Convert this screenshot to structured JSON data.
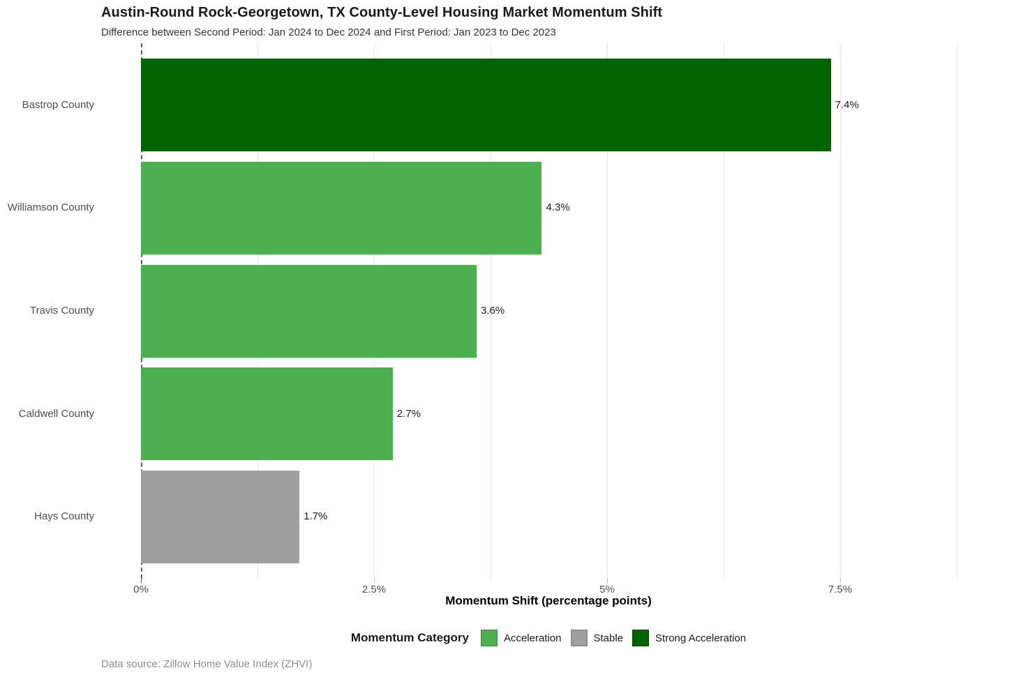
{
  "header": {
    "title": "Austin-Round Rock-Georgetown, TX County-Level Housing Market Momentum Shift",
    "subtitle": "Difference between Second Period: Jan 2024 to Dec 2024 and First Period: Jan 2023 to Dec 2023"
  },
  "footer": {
    "source_note": "Data source: Zillow Home Value Index (ZHVI)"
  },
  "chart_data": {
    "type": "bar",
    "orientation": "horizontal",
    "title": "Austin-Round Rock-Georgetown, TX County-Level Housing Market Momentum Shift",
    "subtitle": "Difference between Second Period: Jan 2024 to Dec 2024 and First Period: Jan 2023 to Dec 2023",
    "xlabel": "Momentum Shift (percentage points)",
    "ylabel": "",
    "categories": [
      "Bastrop County",
      "Williamson County",
      "Travis County",
      "Caldwell County",
      "Hays County"
    ],
    "values": [
      7.4,
      4.3,
      3.6,
      2.7,
      1.7
    ],
    "value_labels": [
      "7.4%",
      "4.3%",
      "3.6%",
      "2.7%",
      "1.7%"
    ],
    "bar_categories": [
      "Strong Acceleration",
      "Acceleration",
      "Acceleration",
      "Acceleration",
      "Stable"
    ],
    "category_colors": {
      "Acceleration": "#4CAF50",
      "Stable": "#9E9E9E",
      "Strong Acceleration": "#006400"
    },
    "xlim": [
      0,
      8.75
    ],
    "x_tick_values": [
      0,
      2.5,
      5,
      7.5
    ],
    "x_ticks": [
      "0%",
      "2.5%",
      "5%",
      "7.5%"
    ],
    "grid_values": [
      1.25,
      2.5,
      3.75,
      5,
      6.25,
      7.5,
      8.75
    ],
    "grid": true,
    "zero_line_style": "dashed",
    "legend": {
      "title": "Momentum Category",
      "position": "bottom",
      "items": [
        {
          "label": "Acceleration",
          "color": "#4CAF50"
        },
        {
          "label": "Stable",
          "color": "#9E9E9E"
        },
        {
          "label": "Strong Acceleration",
          "color": "#006400"
        }
      ]
    }
  }
}
